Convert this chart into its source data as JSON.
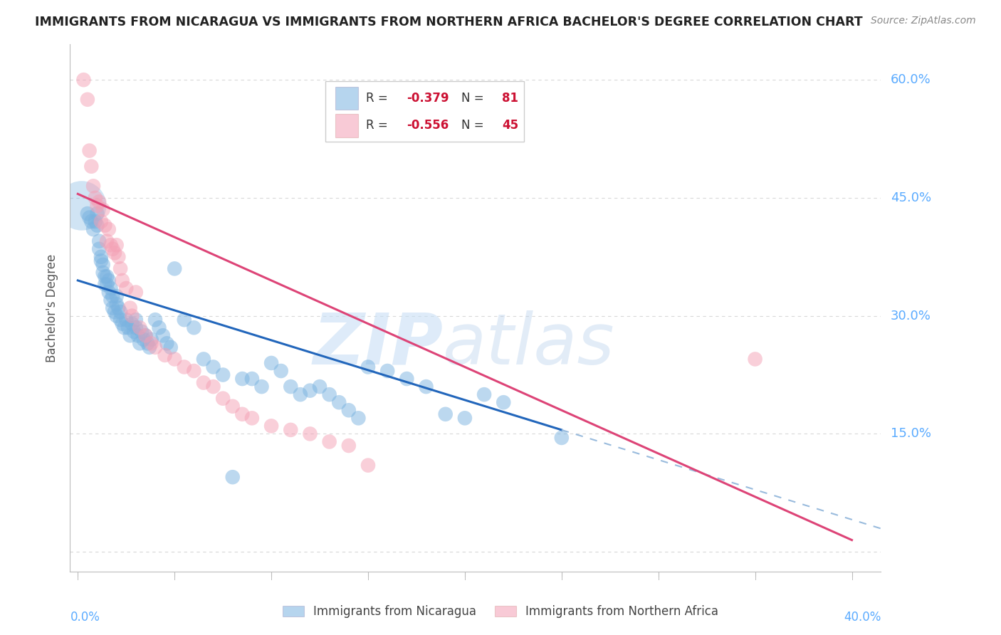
{
  "title": "IMMIGRANTS FROM NICARAGUA VS IMMIGRANTS FROM NORTHERN AFRICA BACHELOR'S DEGREE CORRELATION CHART",
  "source": "Source: ZipAtlas.com",
  "ylabel": "Bachelor's Degree",
  "y_ticks": [
    0.0,
    0.15,
    0.3,
    0.45,
    0.6
  ],
  "y_tick_labels": [
    "",
    "15.0%",
    "30.0%",
    "45.0%",
    "60.0%"
  ],
  "x_ticks": [
    0.0,
    0.05,
    0.1,
    0.15,
    0.2,
    0.25,
    0.3,
    0.35,
    0.4
  ],
  "series1_color": "#7ab3e0",
  "series2_color": "#f4a0b5",
  "series1_label": "Immigrants from Nicaragua",
  "series2_label": "Immigrants from Northern Africa",
  "r1_text": "R = -0.379",
  "n1_text": "N =  81",
  "r2_text": "R = -0.556",
  "n2_text": "N =  45",
  "watermark_zip": "ZIP",
  "watermark_atlas": "atlas",
  "background_color": "#ffffff",
  "grid_color": "#d8d8d8",
  "tick_label_color": "#5aabff",
  "title_color": "#222222",
  "source_color": "#888888",
  "legend_r_color": "#cc1133",
  "legend_text_color": "#333333",
  "blue_x": [
    0.005,
    0.006,
    0.007,
    0.008,
    0.009,
    0.01,
    0.01,
    0.011,
    0.011,
    0.012,
    0.012,
    0.013,
    0.013,
    0.014,
    0.014,
    0.015,
    0.015,
    0.016,
    0.016,
    0.017,
    0.017,
    0.018,
    0.018,
    0.019,
    0.02,
    0.02,
    0.02,
    0.021,
    0.022,
    0.022,
    0.023,
    0.024,
    0.025,
    0.026,
    0.027,
    0.028,
    0.029,
    0.03,
    0.03,
    0.031,
    0.032,
    0.033,
    0.034,
    0.035,
    0.036,
    0.037,
    0.038,
    0.04,
    0.042,
    0.044,
    0.046,
    0.048,
    0.05,
    0.055,
    0.06,
    0.065,
    0.07,
    0.075,
    0.08,
    0.085,
    0.09,
    0.095,
    0.1,
    0.105,
    0.11,
    0.115,
    0.12,
    0.125,
    0.13,
    0.135,
    0.14,
    0.145,
    0.15,
    0.16,
    0.17,
    0.18,
    0.19,
    0.2,
    0.21,
    0.22,
    0.25
  ],
  "blue_y": [
    0.43,
    0.425,
    0.42,
    0.41,
    0.42,
    0.415,
    0.43,
    0.385,
    0.395,
    0.37,
    0.375,
    0.355,
    0.365,
    0.34,
    0.35,
    0.34,
    0.35,
    0.33,
    0.345,
    0.32,
    0.335,
    0.31,
    0.325,
    0.305,
    0.3,
    0.315,
    0.325,
    0.31,
    0.295,
    0.305,
    0.29,
    0.285,
    0.295,
    0.285,
    0.275,
    0.29,
    0.28,
    0.285,
    0.295,
    0.275,
    0.265,
    0.28,
    0.27,
    0.275,
    0.265,
    0.26,
    0.27,
    0.295,
    0.285,
    0.275,
    0.265,
    0.26,
    0.36,
    0.295,
    0.285,
    0.245,
    0.235,
    0.225,
    0.095,
    0.22,
    0.22,
    0.21,
    0.24,
    0.23,
    0.21,
    0.2,
    0.205,
    0.21,
    0.2,
    0.19,
    0.18,
    0.17,
    0.235,
    0.23,
    0.22,
    0.21,
    0.175,
    0.17,
    0.2,
    0.19,
    0.145
  ],
  "pink_x": [
    0.003,
    0.005,
    0.006,
    0.007,
    0.008,
    0.009,
    0.01,
    0.011,
    0.012,
    0.013,
    0.014,
    0.015,
    0.016,
    0.017,
    0.018,
    0.019,
    0.02,
    0.021,
    0.022,
    0.023,
    0.025,
    0.027,
    0.028,
    0.03,
    0.032,
    0.035,
    0.038,
    0.04,
    0.045,
    0.05,
    0.055,
    0.06,
    0.065,
    0.07,
    0.075,
    0.08,
    0.085,
    0.09,
    0.1,
    0.11,
    0.12,
    0.13,
    0.14,
    0.15,
    0.35
  ],
  "pink_y": [
    0.6,
    0.575,
    0.51,
    0.49,
    0.465,
    0.45,
    0.44,
    0.445,
    0.42,
    0.435,
    0.415,
    0.395,
    0.41,
    0.39,
    0.385,
    0.38,
    0.39,
    0.375,
    0.36,
    0.345,
    0.335,
    0.31,
    0.3,
    0.33,
    0.285,
    0.275,
    0.265,
    0.26,
    0.25,
    0.245,
    0.235,
    0.23,
    0.215,
    0.21,
    0.195,
    0.185,
    0.175,
    0.17,
    0.16,
    0.155,
    0.15,
    0.14,
    0.135,
    0.11,
    0.245
  ]
}
